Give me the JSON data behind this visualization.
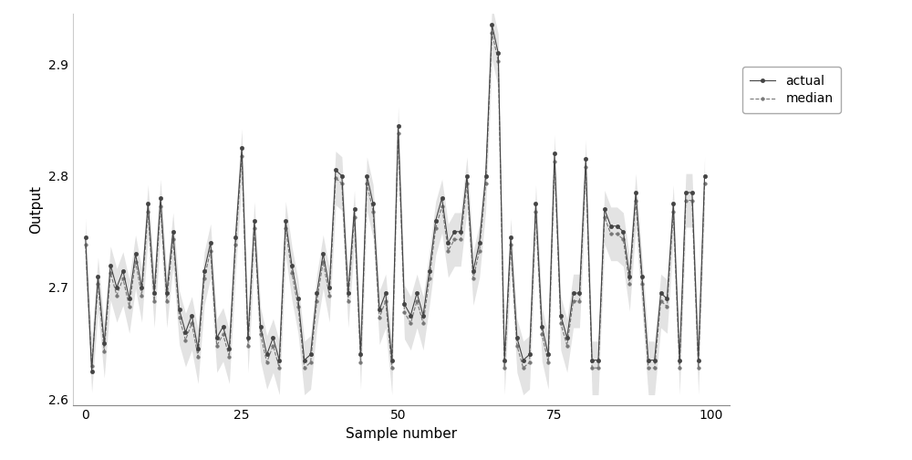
{
  "xlabel": "Sample number",
  "ylabel": "Output",
  "xlim": [
    -2,
    103
  ],
  "ylim": [
    2.595,
    2.945
  ],
  "xticks": [
    0,
    25,
    50,
    75,
    100
  ],
  "yticks": [
    2.6,
    2.7,
    2.8,
    2.9
  ],
  "actual_color": "#444444",
  "median_color": "#777777",
  "fill_color": "#cccccc",
  "fill_alpha": 0.55,
  "actual_values": [
    2.745,
    2.625,
    2.71,
    2.65,
    2.72,
    2.7,
    2.715,
    2.69,
    2.73,
    2.7,
    2.775,
    2.695,
    2.78,
    2.695,
    2.75,
    2.68,
    2.66,
    2.675,
    2.645,
    2.715,
    2.74,
    2.655,
    2.665,
    2.645,
    2.745,
    2.825,
    2.655,
    2.76,
    2.665,
    2.64,
    2.655,
    2.635,
    2.76,
    2.72,
    2.69,
    2.635,
    2.64,
    2.695,
    2.73,
    2.7,
    2.805,
    2.8,
    2.695,
    2.77,
    2.64,
    2.8,
    2.775,
    2.68,
    2.695,
    2.635,
    2.845,
    2.685,
    2.675,
    2.695,
    2.675,
    2.715,
    2.76,
    2.78,
    2.74,
    2.75,
    2.75,
    2.8,
    2.715,
    2.74,
    2.8,
    2.935,
    2.91,
    2.635,
    2.745,
    2.655,
    2.635,
    2.64,
    2.775,
    2.665,
    2.64,
    2.82,
    2.675,
    2.655,
    2.695,
    2.695,
    2.815,
    2.635,
    2.635,
    2.77,
    2.755,
    2.755,
    2.75,
    2.71,
    2.785,
    2.71,
    2.635,
    2.635,
    2.695,
    2.69,
    2.775,
    2.635,
    2.785,
    2.785,
    2.635,
    2.8
  ],
  "median_values": [
    2.738,
    2.63,
    2.703,
    2.643,
    2.713,
    2.693,
    2.708,
    2.683,
    2.723,
    2.693,
    2.768,
    2.688,
    2.773,
    2.688,
    2.743,
    2.673,
    2.653,
    2.668,
    2.638,
    2.708,
    2.733,
    2.648,
    2.658,
    2.638,
    2.738,
    2.818,
    2.648,
    2.753,
    2.658,
    2.633,
    2.648,
    2.628,
    2.753,
    2.713,
    2.683,
    2.628,
    2.633,
    2.688,
    2.723,
    2.693,
    2.798,
    2.793,
    2.688,
    2.763,
    2.633,
    2.793,
    2.768,
    2.673,
    2.688,
    2.628,
    2.838,
    2.678,
    2.668,
    2.688,
    2.668,
    2.708,
    2.753,
    2.773,
    2.733,
    2.743,
    2.743,
    2.793,
    2.708,
    2.733,
    2.793,
    2.928,
    2.903,
    2.628,
    2.738,
    2.648,
    2.628,
    2.633,
    2.768,
    2.658,
    2.633,
    2.813,
    2.668,
    2.648,
    2.688,
    2.688,
    2.808,
    2.628,
    2.628,
    2.763,
    2.748,
    2.748,
    2.743,
    2.703,
    2.778,
    2.703,
    2.628,
    2.628,
    2.688,
    2.683,
    2.768,
    2.628,
    2.778,
    2.778,
    2.628,
    2.793
  ],
  "upper_values": [
    2.762,
    2.654,
    2.727,
    2.667,
    2.737,
    2.717,
    2.732,
    2.707,
    2.747,
    2.717,
    2.792,
    2.712,
    2.797,
    2.712,
    2.767,
    2.697,
    2.677,
    2.692,
    2.662,
    2.732,
    2.757,
    2.672,
    2.682,
    2.662,
    2.762,
    2.842,
    2.672,
    2.777,
    2.682,
    2.657,
    2.672,
    2.652,
    2.777,
    2.737,
    2.707,
    2.652,
    2.657,
    2.712,
    2.747,
    2.717,
    2.822,
    2.817,
    2.712,
    2.787,
    2.657,
    2.817,
    2.792,
    2.697,
    2.712,
    2.652,
    2.862,
    2.702,
    2.692,
    2.712,
    2.692,
    2.732,
    2.777,
    2.797,
    2.757,
    2.767,
    2.767,
    2.817,
    2.732,
    2.757,
    2.817,
    2.952,
    2.927,
    2.652,
    2.762,
    2.672,
    2.652,
    2.657,
    2.792,
    2.682,
    2.657,
    2.837,
    2.692,
    2.672,
    2.712,
    2.712,
    2.832,
    2.652,
    2.652,
    2.787,
    2.772,
    2.772,
    2.767,
    2.727,
    2.802,
    2.727,
    2.652,
    2.652,
    2.712,
    2.707,
    2.792,
    2.652,
    2.802,
    2.802,
    2.652,
    2.817
  ],
  "lower_values": [
    2.714,
    2.606,
    2.679,
    2.619,
    2.689,
    2.669,
    2.684,
    2.659,
    2.699,
    2.669,
    2.744,
    2.664,
    2.749,
    2.664,
    2.719,
    2.649,
    2.629,
    2.644,
    2.614,
    2.684,
    2.709,
    2.624,
    2.634,
    2.614,
    2.714,
    2.794,
    2.624,
    2.729,
    2.634,
    2.609,
    2.624,
    2.604,
    2.729,
    2.689,
    2.659,
    2.604,
    2.609,
    2.664,
    2.699,
    2.669,
    2.774,
    2.769,
    2.664,
    2.739,
    2.609,
    2.769,
    2.744,
    2.649,
    2.664,
    2.604,
    2.814,
    2.654,
    2.644,
    2.664,
    2.644,
    2.684,
    2.729,
    2.749,
    2.709,
    2.719,
    2.719,
    2.769,
    2.684,
    2.709,
    2.769,
    2.904,
    2.879,
    2.604,
    2.714,
    2.624,
    2.604,
    2.609,
    2.744,
    2.634,
    2.609,
    2.789,
    2.644,
    2.624,
    2.664,
    2.664,
    2.784,
    2.604,
    2.604,
    2.739,
    2.724,
    2.724,
    2.719,
    2.679,
    2.754,
    2.679,
    2.604,
    2.604,
    2.664,
    2.659,
    2.744,
    2.604,
    2.754,
    2.754,
    2.604,
    2.769
  ]
}
